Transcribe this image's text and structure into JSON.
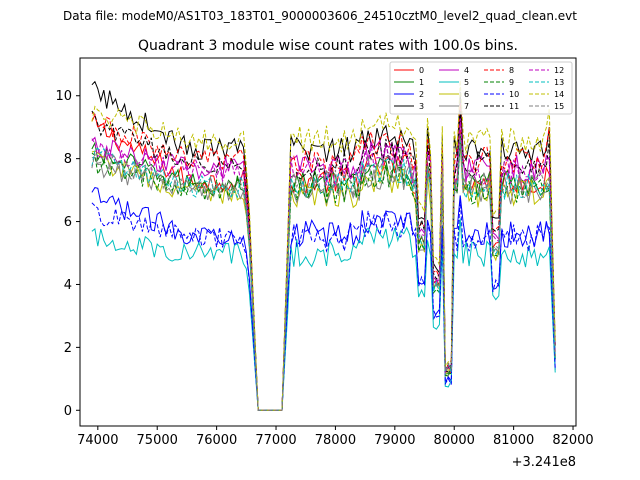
{
  "header": {
    "data_file": "Data file: modeM0/AS1T03_183T01_9000003606_24510cztM0_level2_quad_clean.evt"
  },
  "chart_data": {
    "type": "line",
    "title": "Quadrant 3 module wise count rates with 100.0s bins.",
    "xlabel": "",
    "ylabel": "",
    "x_offset_label": "+3.241e8",
    "xlim": [
      73700,
      82050
    ],
    "ylim": [
      -0.5,
      11.2
    ],
    "x_ticks": [
      74000,
      75000,
      76000,
      77000,
      78000,
      79000,
      80000,
      81000,
      82000
    ],
    "x_tick_labels": [
      "74000",
      "75000",
      "76000",
      "77000",
      "78000",
      "79000",
      "80000",
      "81000",
      "82000"
    ],
    "y_ticks": [
      0,
      2,
      4,
      6,
      8,
      10
    ],
    "y_tick_labels": [
      "0",
      "2",
      "4",
      "6",
      "8",
      "10"
    ],
    "segments": [
      {
        "x_start": 73900,
        "x_end": 76500
      },
      {
        "x_start": 76600,
        "x_end": 77100
      },
      {
        "x_start": 77200,
        "x_end": 81700
      }
    ],
    "series": [
      {
        "name": "0",
        "color": "#ff0000",
        "dash": "solid",
        "level": 7.3,
        "start": 9.1,
        "gap_end": 7.2,
        "drop": 7.5
      },
      {
        "name": "1",
        "color": "#008000",
        "dash": "solid",
        "level": 7.2,
        "start": 8.2,
        "gap_end": 7.2,
        "drop": 7.0
      },
      {
        "name": "2",
        "color": "#0000ff",
        "dash": "solid",
        "level": 5.6,
        "start": 6.8,
        "gap_end": 5.6,
        "drop": 5.6
      },
      {
        "name": "3",
        "color": "#000000",
        "dash": "solid",
        "level": 8.3,
        "start": 10.2,
        "gap_end": 8.3,
        "drop": 9.0
      },
      {
        "name": "4",
        "color": "#bf00bf",
        "dash": "solid",
        "level": 7.7,
        "start": 8.4,
        "gap_end": 7.7,
        "drop": 8.0
      },
      {
        "name": "5",
        "color": "#00bfbf",
        "dash": "solid",
        "level": 5.0,
        "start": 5.5,
        "gap_end": 4.8,
        "drop": 5.2
      },
      {
        "name": "6",
        "color": "#bfbf00",
        "dash": "solid",
        "level": 6.9,
        "start": 8.0,
        "gap_end": 6.8,
        "drop": 7.4
      },
      {
        "name": "7",
        "color": "#808080",
        "dash": "solid",
        "level": 7.0,
        "start": 7.8,
        "gap_end": 7.0,
        "drop": 7.2
      },
      {
        "name": "8",
        "color": "#ff0000",
        "dash": "dashed",
        "level": 8.0,
        "start": 9.2,
        "gap_end": 8.2,
        "drop": 9.0
      },
      {
        "name": "9",
        "color": "#008000",
        "dash": "dashed",
        "level": 7.0,
        "start": 7.9,
        "gap_end": 7.0,
        "drop": 7.0
      },
      {
        "name": "10",
        "color": "#0000ff",
        "dash": "dashed",
        "level": 5.5,
        "start": 6.3,
        "gap_end": 5.5,
        "drop": 5.8
      },
      {
        "name": "11",
        "color": "#000000",
        "dash": "dashed",
        "level": 7.8,
        "start": 9.2,
        "gap_end": 7.8,
        "drop": 8.6
      },
      {
        "name": "12",
        "color": "#bf00bf",
        "dash": "dashed",
        "level": 7.6,
        "start": 8.3,
        "gap_end": 7.6,
        "drop": 8.0
      },
      {
        "name": "13",
        "color": "#00bfbf",
        "dash": "dashed",
        "level": 7.1,
        "start": 8.1,
        "gap_end": 7.0,
        "drop": 7.2
      },
      {
        "name": "14",
        "color": "#bfbf00",
        "dash": "dashed",
        "level": 8.6,
        "start": 9.5,
        "gap_end": 8.6,
        "drop": 9.6
      },
      {
        "name": "15",
        "color": "#808080",
        "dash": "dashed",
        "level": 7.2,
        "start": 8.0,
        "gap_end": 7.2,
        "drop": 7.4
      }
    ],
    "legend_position": "top-right",
    "legend_columns": 4
  }
}
